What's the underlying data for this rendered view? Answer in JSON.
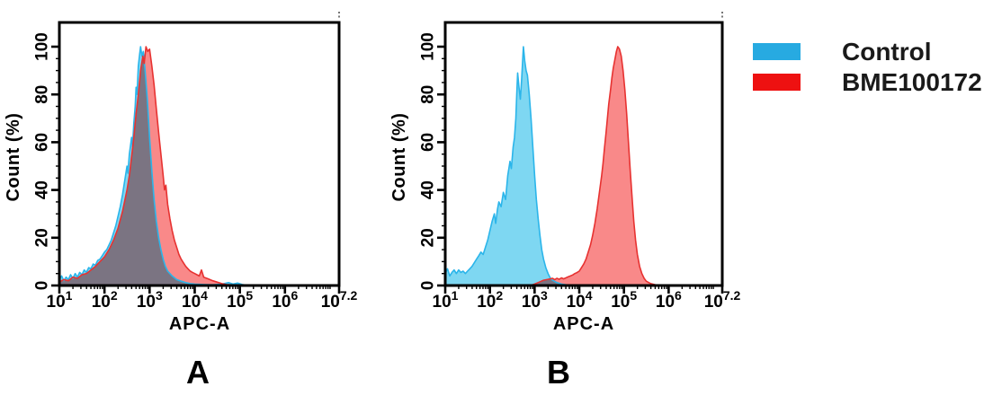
{
  "legend": {
    "items": [
      {
        "label": "Control",
        "swatch_color": "#27AAE1"
      },
      {
        "label": "BME100172",
        "swatch_color": "#EE1111"
      }
    ]
  },
  "colors": {
    "control_fill": "#7ED7F2",
    "control_stroke": "#2BB5EA",
    "treated_fill": "#F98989",
    "treated_stroke": "#E73231",
    "axis": "#000000"
  },
  "chart_data": [
    {
      "type": "area",
      "panel_label": "A",
      "xlabel": "APC-A",
      "ylabel": "Count  (%)",
      "x_scale": "log10",
      "xlim_log10": [
        1,
        7.2
      ],
      "x_tick_exponents": [
        "1",
        "2",
        "3",
        "4",
        "5",
        "6",
        "7.2"
      ],
      "ylim": [
        0,
        100
      ],
      "y_ticks": [
        0,
        20,
        40,
        60,
        80,
        100
      ],
      "y_minor_step": 5,
      "grid": false,
      "legend_position": "figure-right",
      "series": [
        {
          "name": "Control",
          "color_key": "control",
          "points": [
            [
              1.0,
              2.5
            ],
            [
              1.05,
              4
            ],
            [
              1.1,
              2
            ],
            [
              1.15,
              3.5
            ],
            [
              1.2,
              2.5
            ],
            [
              1.25,
              4.5
            ],
            [
              1.3,
              3
            ],
            [
              1.35,
              5
            ],
            [
              1.4,
              3.5
            ],
            [
              1.45,
              5.5
            ],
            [
              1.5,
              4.5
            ],
            [
              1.55,
              6.5
            ],
            [
              1.6,
              5.5
            ],
            [
              1.65,
              7.5
            ],
            [
              1.7,
              7
            ],
            [
              1.75,
              9
            ],
            [
              1.8,
              8.5
            ],
            [
              1.85,
              10.5
            ],
            [
              1.9,
              11
            ],
            [
              1.95,
              12.5
            ],
            [
              2.0,
              14
            ],
            [
              2.05,
              15
            ],
            [
              2.1,
              17
            ],
            [
              2.15,
              19
            ],
            [
              2.2,
              22
            ],
            [
              2.25,
              25
            ],
            [
              2.3,
              29
            ],
            [
              2.35,
              33
            ],
            [
              2.4,
              38
            ],
            [
              2.45,
              44
            ],
            [
              2.5,
              50
            ],
            [
              2.52,
              47
            ],
            [
              2.55,
              55
            ],
            [
              2.6,
              62
            ],
            [
              2.62,
              58
            ],
            [
              2.65,
              68
            ],
            [
              2.68,
              75
            ],
            [
              2.7,
              83
            ],
            [
              2.72,
              80
            ],
            [
              2.75,
              92
            ],
            [
              2.78,
              97
            ],
            [
              2.8,
              100
            ],
            [
              2.83,
              96
            ],
            [
              2.86,
              98
            ],
            [
              2.9,
              90
            ],
            [
              2.95,
              78
            ],
            [
              3.0,
              62
            ],
            [
              3.05,
              48
            ],
            [
              3.1,
              36
            ],
            [
              3.15,
              27
            ],
            [
              3.2,
              20
            ],
            [
              3.25,
              15
            ],
            [
              3.3,
              11
            ],
            [
              3.35,
              8
            ],
            [
              3.4,
              6
            ],
            [
              3.5,
              4
            ],
            [
              3.6,
              2.5
            ],
            [
              3.7,
              1.8
            ],
            [
              3.8,
              1.2
            ],
            [
              3.9,
              0.8
            ],
            [
              4.0,
              0.6
            ],
            [
              4.2,
              0.4
            ],
            [
              4.4,
              0.3
            ],
            [
              4.6,
              0.6
            ],
            [
              4.75,
              1.2
            ],
            [
              4.85,
              0.6
            ],
            [
              4.95,
              1.0
            ],
            [
              5.05,
              0.4
            ],
            [
              5.2,
              0
            ],
            [
              7.2,
              0
            ]
          ]
        },
        {
          "name": "BME100172",
          "color_key": "treated",
          "points": [
            [
              1.0,
              1.5
            ],
            [
              1.1,
              2.5
            ],
            [
              1.2,
              2
            ],
            [
              1.3,
              3.5
            ],
            [
              1.4,
              3
            ],
            [
              1.5,
              4.5
            ],
            [
              1.6,
              5
            ],
            [
              1.7,
              6.5
            ],
            [
              1.8,
              8
            ],
            [
              1.9,
              10
            ],
            [
              2.0,
              12
            ],
            [
              2.1,
              15
            ],
            [
              2.2,
              19
            ],
            [
              2.3,
              24
            ],
            [
              2.4,
              31
            ],
            [
              2.5,
              40
            ],
            [
              2.55,
              46
            ],
            [
              2.6,
              54
            ],
            [
              2.65,
              62
            ],
            [
              2.7,
              72
            ],
            [
              2.75,
              80
            ],
            [
              2.8,
              90
            ],
            [
              2.85,
              96
            ],
            [
              2.88,
              93
            ],
            [
              2.92,
              100
            ],
            [
              2.96,
              98
            ],
            [
              3.0,
              99
            ],
            [
              3.05,
              92
            ],
            [
              3.1,
              84
            ],
            [
              3.15,
              74
            ],
            [
              3.2,
              64
            ],
            [
              3.25,
              55
            ],
            [
              3.3,
              46
            ],
            [
              3.33,
              40
            ],
            [
              3.36,
              42
            ],
            [
              3.4,
              34
            ],
            [
              3.45,
              28
            ],
            [
              3.5,
              23
            ],
            [
              3.55,
              19
            ],
            [
              3.6,
              16
            ],
            [
              3.65,
              13
            ],
            [
              3.7,
              11
            ],
            [
              3.75,
              9.5
            ],
            [
              3.8,
              8
            ],
            [
              3.85,
              7
            ],
            [
              3.9,
              6
            ],
            [
              3.95,
              5.5
            ],
            [
              4.0,
              5
            ],
            [
              4.05,
              4.5
            ],
            [
              4.1,
              4
            ],
            [
              4.15,
              6.5
            ],
            [
              4.2,
              3.5
            ],
            [
              4.3,
              2.8
            ],
            [
              4.4,
              2
            ],
            [
              4.5,
              1.4
            ],
            [
              4.6,
              0.8
            ],
            [
              4.7,
              0.4
            ],
            [
              4.9,
              0.2
            ],
            [
              5.1,
              0
            ],
            [
              7.2,
              0
            ]
          ]
        }
      ]
    },
    {
      "type": "area",
      "panel_label": "B",
      "xlabel": "APC-A",
      "ylabel": "Count  (%)",
      "x_scale": "log10",
      "xlim_log10": [
        1,
        7.2
      ],
      "x_tick_exponents": [
        "1",
        "2",
        "3",
        "4",
        "5",
        "6",
        "7.2"
      ],
      "ylim": [
        0,
        100
      ],
      "y_ticks": [
        0,
        20,
        40,
        60,
        80,
        100
      ],
      "y_minor_step": 5,
      "grid": false,
      "legend_position": "figure-right",
      "series": [
        {
          "name": "Control",
          "color_key": "control",
          "points": [
            [
              1.0,
              5
            ],
            [
              1.05,
              7
            ],
            [
              1.1,
              4
            ],
            [
              1.15,
              5.5
            ],
            [
              1.2,
              6.5
            ],
            [
              1.25,
              5
            ],
            [
              1.3,
              6.5
            ],
            [
              1.35,
              5.5
            ],
            [
              1.4,
              6
            ],
            [
              1.45,
              5
            ],
            [
              1.5,
              6
            ],
            [
              1.55,
              7
            ],
            [
              1.6,
              8
            ],
            [
              1.65,
              9.5
            ],
            [
              1.7,
              11
            ],
            [
              1.75,
              12.5
            ],
            [
              1.8,
              14
            ],
            [
              1.85,
              13
            ],
            [
              1.9,
              16
            ],
            [
              1.95,
              19
            ],
            [
              2.0,
              23
            ],
            [
              2.05,
              27
            ],
            [
              2.1,
              30
            ],
            [
              2.13,
              26
            ],
            [
              2.17,
              32
            ],
            [
              2.2,
              35
            ],
            [
              2.25,
              33
            ],
            [
              2.3,
              39
            ],
            [
              2.35,
              36
            ],
            [
              2.4,
              46
            ],
            [
              2.45,
              52
            ],
            [
              2.48,
              49
            ],
            [
              2.52,
              58
            ],
            [
              2.55,
              62
            ],
            [
              2.58,
              70
            ],
            [
              2.6,
              80
            ],
            [
              2.62,
              89
            ],
            [
              2.65,
              83
            ],
            [
              2.68,
              78
            ],
            [
              2.71,
              86
            ],
            [
              2.75,
              100
            ],
            [
              2.78,
              94
            ],
            [
              2.81,
              90
            ],
            [
              2.84,
              88
            ],
            [
              2.88,
              80
            ],
            [
              2.92,
              70
            ],
            [
              2.96,
              58
            ],
            [
              3.0,
              46
            ],
            [
              3.04,
              36
            ],
            [
              3.08,
              28
            ],
            [
              3.12,
              21
            ],
            [
              3.16,
              15
            ],
            [
              3.2,
              11
            ],
            [
              3.25,
              7.5
            ],
            [
              3.3,
              5
            ],
            [
              3.35,
              3.2
            ],
            [
              3.4,
              2.2
            ],
            [
              3.5,
              1.2
            ],
            [
              3.6,
              0.6
            ],
            [
              3.7,
              0.3
            ],
            [
              3.8,
              0
            ],
            [
              7.2,
              0
            ]
          ]
        },
        {
          "name": "BME100172",
          "color_key": "treated",
          "points": [
            [
              1.0,
              0
            ],
            [
              2.9,
              0
            ],
            [
              3.0,
              0.6
            ],
            [
              3.1,
              1.4
            ],
            [
              3.2,
              2.2
            ],
            [
              3.3,
              2.6
            ],
            [
              3.4,
              3
            ],
            [
              3.45,
              2.5
            ],
            [
              3.5,
              3
            ],
            [
              3.55,
              2.6
            ],
            [
              3.6,
              3.2
            ],
            [
              3.65,
              2.8
            ],
            [
              3.7,
              3.2
            ],
            [
              3.75,
              3.6
            ],
            [
              3.8,
              4
            ],
            [
              3.85,
              4.4
            ],
            [
              3.9,
              5
            ],
            [
              3.95,
              5.4
            ],
            [
              4.0,
              6
            ],
            [
              4.05,
              7.5
            ],
            [
              4.1,
              9
            ],
            [
              4.15,
              11
            ],
            [
              4.2,
              14
            ],
            [
              4.25,
              17
            ],
            [
              4.3,
              21
            ],
            [
              4.35,
              26
            ],
            [
              4.4,
              32
            ],
            [
              4.45,
              39
            ],
            [
              4.5,
              46
            ],
            [
              4.53,
              51
            ],
            [
              4.56,
              57
            ],
            [
              4.6,
              64
            ],
            [
              4.63,
              70
            ],
            [
              4.66,
              76
            ],
            [
              4.7,
              82
            ],
            [
              4.73,
              87
            ],
            [
              4.76,
              91
            ],
            [
              4.8,
              95
            ],
            [
              4.83,
              98
            ],
            [
              4.86,
              100
            ],
            [
              4.9,
              99
            ],
            [
              4.94,
              96
            ],
            [
              4.98,
              90
            ],
            [
              5.02,
              82
            ],
            [
              5.06,
              72
            ],
            [
              5.1,
              60
            ],
            [
              5.14,
              48
            ],
            [
              5.18,
              37
            ],
            [
              5.22,
              27
            ],
            [
              5.26,
              19
            ],
            [
              5.3,
              13
            ],
            [
              5.35,
              8
            ],
            [
              5.4,
              5
            ],
            [
              5.45,
              3
            ],
            [
              5.5,
              1.8
            ],
            [
              5.6,
              0.8
            ],
            [
              5.7,
              0.3
            ],
            [
              5.8,
              0
            ],
            [
              7.2,
              0
            ]
          ]
        }
      ]
    }
  ]
}
